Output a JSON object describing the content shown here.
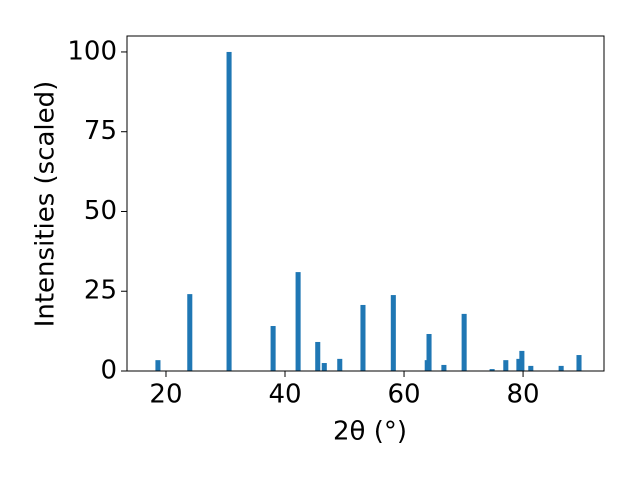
{
  "chart_data": {
    "type": "bar",
    "xlabel": "2θ (°)",
    "ylabel": "Intensities (scaled)",
    "x": [
      18.65,
      24.0,
      30.6,
      38.0,
      42.2,
      45.5,
      46.6,
      49.2,
      53.1,
      58.2,
      63.9,
      64.2,
      66.7,
      70.1,
      74.8,
      77.1,
      79.3,
      79.8,
      81.3,
      86.4,
      89.4
    ],
    "values": [
      3.4,
      24.1,
      100,
      14.1,
      31,
      9.1,
      2.5,
      3.8,
      20.7,
      23.8,
      3.4,
      11.6,
      1.9,
      17.9,
      0.6,
      3.4,
      3.8,
      6.3,
      1.6,
      1.6,
      5
    ],
    "color": "#1f77b4",
    "xlim": [
      13.45,
      93.6
    ],
    "xticks": [
      20,
      40,
      60,
      80
    ],
    "ylim": [
      0,
      105
    ],
    "yticks": [
      0,
      25,
      50,
      75,
      100
    ]
  }
}
